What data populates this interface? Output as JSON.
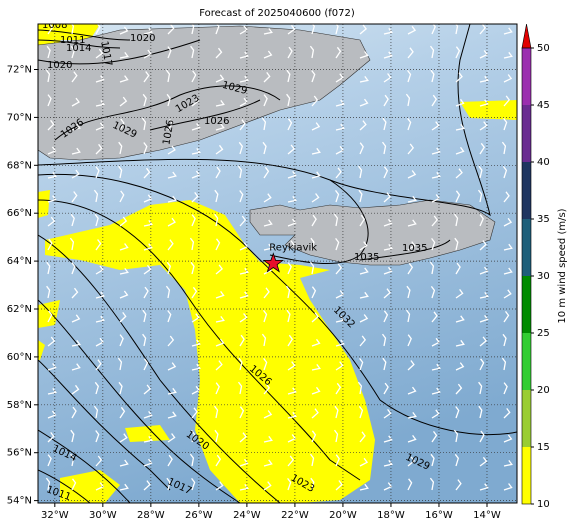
{
  "title": "Forecast of 2025040600 (f072)",
  "map": {
    "lon_range": [
      -32.7,
      -12.75
    ],
    "lat_range": [
      53.9,
      73.9
    ],
    "lon_ticks": [
      {
        "value": -32,
        "label": "32°W"
      },
      {
        "value": -30,
        "label": "30°W"
      },
      {
        "value": -28,
        "label": "28°W"
      },
      {
        "value": -26,
        "label": "26°W"
      },
      {
        "value": -24,
        "label": "24°W"
      },
      {
        "value": -22,
        "label": "22°W"
      },
      {
        "value": -20,
        "label": "20°W"
      },
      {
        "value": -18,
        "label": "18°W"
      },
      {
        "value": -16,
        "label": "16°W"
      },
      {
        "value": -14,
        "label": "14°W"
      }
    ],
    "lat_ticks": [
      {
        "value": 72,
        "label": "72°N"
      },
      {
        "value": 70,
        "label": "70°N"
      },
      {
        "value": 68,
        "label": "68°N"
      },
      {
        "value": 66,
        "label": "66°N"
      },
      {
        "value": 64,
        "label": "64°N"
      },
      {
        "value": 62,
        "label": "62°N"
      },
      {
        "value": 60,
        "label": "60°N"
      },
      {
        "value": 58,
        "label": "58°N"
      },
      {
        "value": 56,
        "label": "56°N"
      },
      {
        "value": 54,
        "label": "54°N"
      }
    ],
    "grid": true,
    "place": {
      "name": "Reykjavik",
      "lon": -22.9,
      "lat": 63.9,
      "color": "#e8102a"
    },
    "contour_labels": [
      "1008",
      "1011",
      "1014",
      "1020",
      "1017",
      "1020",
      "1026",
      "1029",
      "1026",
      "1029",
      "1026",
      "1023",
      "1035",
      "1035",
      "1032",
      "1026",
      "1020",
      "1014",
      "1017",
      "1011",
      "1023",
      "1029"
    ]
  },
  "colorbar": {
    "label": "10 m wind speed (m/s)",
    "ticks": [
      10,
      15,
      20,
      25,
      30,
      35,
      40,
      45,
      50
    ],
    "colors": [
      "#ffff00",
      "#9acd32",
      "#32cd32",
      "#008b00",
      "#1e5f7a",
      "#1f3560",
      "#6a2c91",
      "#9b2faf"
    ],
    "extend_color": "#e00000"
  }
}
